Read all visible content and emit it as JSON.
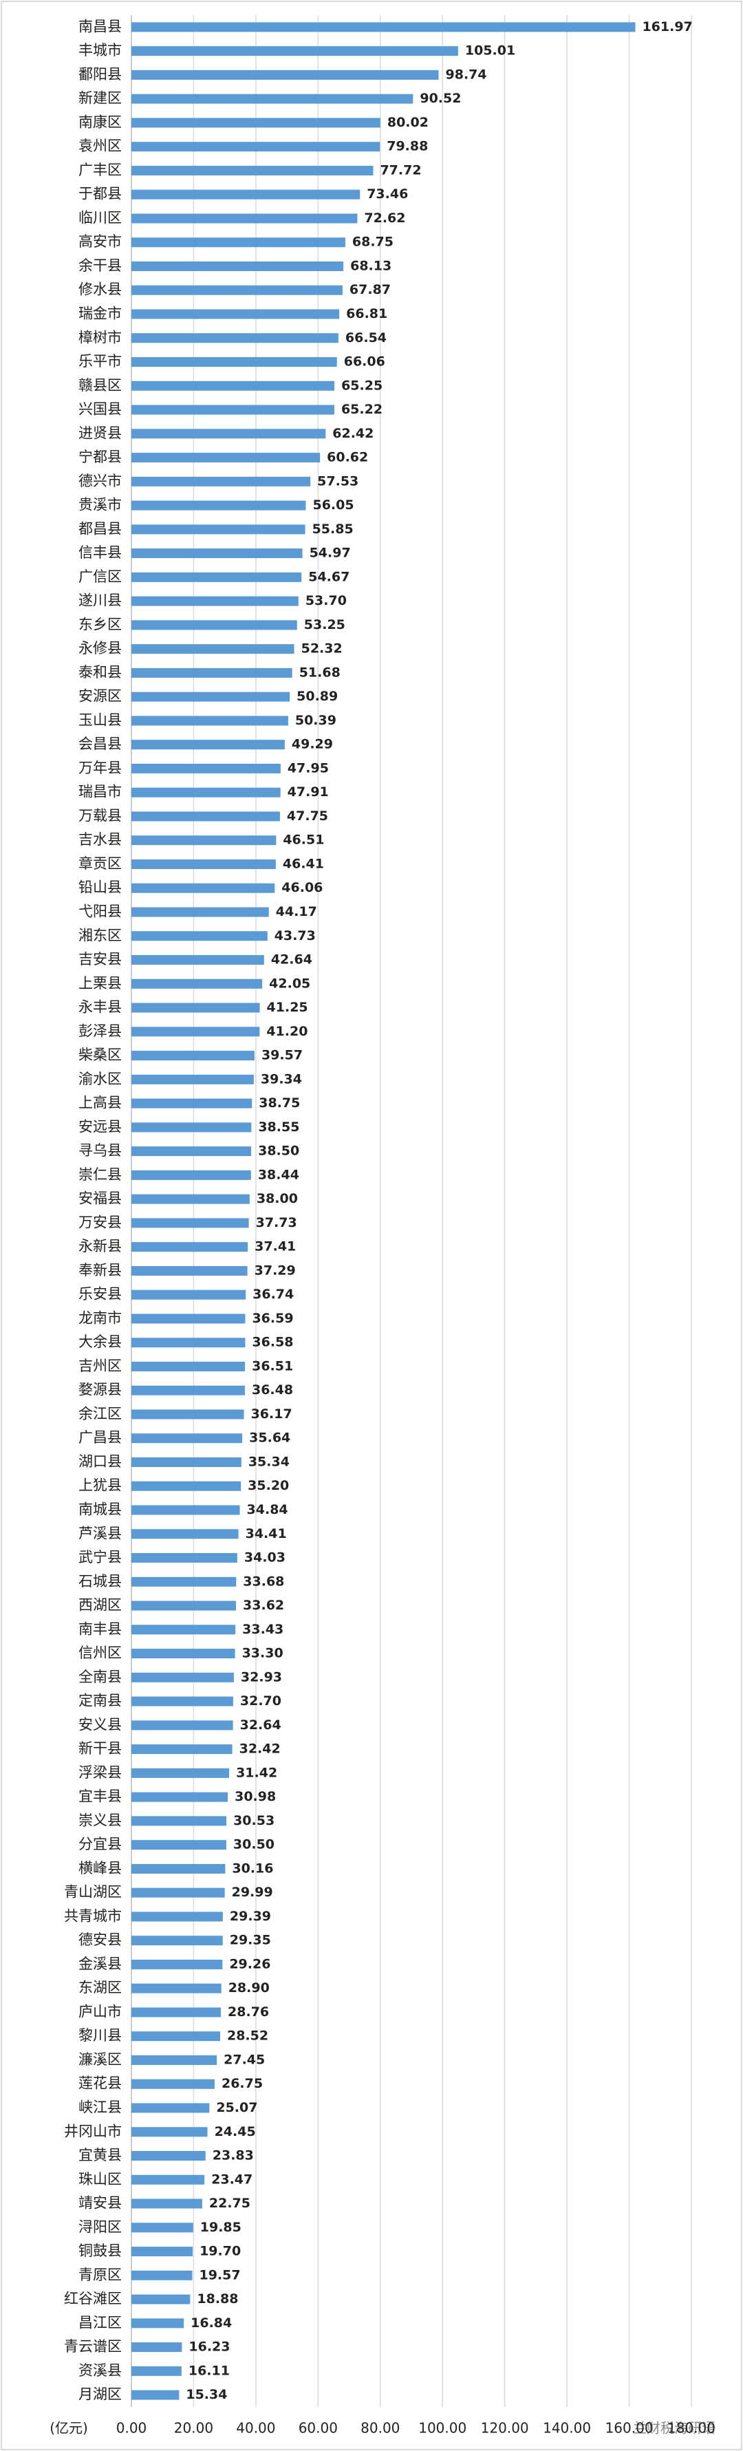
{
  "chart_data": {
    "type": "bar",
    "orientation": "horizontal",
    "color": "#5b9bd5",
    "grid": true,
    "x_label": "(亿元)",
    "watermark": "兰财税海研语",
    "categories": [
      "南昌县",
      "丰城市",
      "鄱阳县",
      "新建区",
      "南康区",
      "袁州区",
      "广丰区",
      "于都县",
      "临川区",
      "高安市",
      "余干县",
      "修水县",
      "瑞金市",
      "樟树市",
      "乐平市",
      "赣县区",
      "兴国县",
      "进贤县",
      "宁都县",
      "德兴市",
      "贵溪市",
      "都昌县",
      "信丰县",
      "广信区",
      "遂川县",
      "东乡区",
      "永修县",
      "泰和县",
      "安源区",
      "玉山县",
      "会昌县",
      "万年县",
      "瑞昌市",
      "万载县",
      "吉水县",
      "章贡区",
      "铅山县",
      "弋阳县",
      "湘东区",
      "吉安县",
      "上栗县",
      "永丰县",
      "彭泽县",
      "柴桑区",
      "渝水区",
      "上高县",
      "安远县",
      "寻乌县",
      "崇仁县",
      "安福县",
      "万安县",
      "永新县",
      "奉新县",
      "乐安县",
      "龙南市",
      "大余县",
      "吉州区",
      "婺源县",
      "余江区",
      "广昌县",
      "湖口县",
      "上犹县",
      "南城县",
      "芦溪县",
      "武宁县",
      "石城县",
      "西湖区",
      "南丰县",
      "信州区",
      "全南县",
      "定南县",
      "安义县",
      "新干县",
      "浮梁县",
      "宜丰县",
      "崇义县",
      "分宜县",
      "横峰县",
      "青山湖区",
      "共青城市",
      "德安县",
      "金溪县",
      "东湖区",
      "庐山市",
      "黎川县",
      "濂溪区",
      "莲花县",
      "峡江县",
      "井冈山市",
      "宜黄县",
      "珠山区",
      "靖安县",
      "浔阳区",
      "铜鼓县",
      "青原区",
      "红谷滩区",
      "昌江区",
      "青云谱区",
      "资溪县",
      "月湖区"
    ],
    "values": [
      161.97,
      105.01,
      98.74,
      90.52,
      80.02,
      79.88,
      77.72,
      73.46,
      72.62,
      68.75,
      68.13,
      67.87,
      66.81,
      66.54,
      66.06,
      65.25,
      65.22,
      62.42,
      60.62,
      57.53,
      56.05,
      55.85,
      54.97,
      54.67,
      53.7,
      53.25,
      52.32,
      51.68,
      50.89,
      50.39,
      49.29,
      47.95,
      47.91,
      47.75,
      46.51,
      46.41,
      46.06,
      44.17,
      43.73,
      42.64,
      42.05,
      41.25,
      41.2,
      39.57,
      39.34,
      38.75,
      38.55,
      38.5,
      38.44,
      38.0,
      37.73,
      37.41,
      37.29,
      36.74,
      36.59,
      36.58,
      36.51,
      36.48,
      36.17,
      35.64,
      35.34,
      35.2,
      34.84,
      34.41,
      34.03,
      33.68,
      33.62,
      33.43,
      33.3,
      32.93,
      32.7,
      32.64,
      32.42,
      31.42,
      30.98,
      30.53,
      30.5,
      30.16,
      29.99,
      29.39,
      29.35,
      29.26,
      28.9,
      28.76,
      28.52,
      27.45,
      26.75,
      25.07,
      24.45,
      23.83,
      23.47,
      22.75,
      19.85,
      19.7,
      19.57,
      18.88,
      16.84,
      16.23,
      16.11,
      15.34
    ],
    "value_labels": [
      "161.97",
      "105.01",
      "98.74",
      "90.52",
      "80.02",
      "79.88",
      "77.72",
      "73.46",
      "72.62",
      "68.75",
      "68.13",
      "67.87",
      "66.81",
      "66.54",
      "66.06",
      "65.25",
      "65.22",
      "62.42",
      "60.62",
      "57.53",
      "56.05",
      "55.85",
      "54.97",
      "54.67",
      "53.70",
      "53.25",
      "52.32",
      "51.68",
      "50.89",
      "50.39",
      "49.29",
      "47.95",
      "47.91",
      "47.75",
      "46.51",
      "46.41",
      "46.06",
      "44.17",
      "43.73",
      "42.64",
      "42.05",
      "41.25",
      "41.20",
      "39.57",
      "39.34",
      "38.75",
      "38.55",
      "38.50",
      "38.44",
      "38.00",
      "37.73",
      "37.41",
      "37.29",
      "36.74",
      "36.59",
      "36.58",
      "36.51",
      "36.48",
      "36.17",
      "35.64",
      "35.34",
      "35.20",
      "34.84",
      "34.41",
      "34.03",
      "33.68",
      "33.62",
      "33.43",
      "33.30",
      "32.93",
      "32.70",
      "32.64",
      "32.42",
      "31.42",
      "30.98",
      "30.53",
      "30.50",
      "30.16",
      "29.99",
      "29.39",
      "29.35",
      "29.26",
      "28.90",
      "28.76",
      "28.52",
      "27.45",
      "26.75",
      "25.07",
      "24.45",
      "23.83",
      "23.47",
      "22.75",
      "19.85",
      "19.70",
      "19.57",
      "18.88",
      "16.84",
      "16.23",
      "16.11",
      "15.34"
    ],
    "xlim": [
      0,
      180
    ],
    "xticks": [
      {
        "value": 0,
        "label": "0.00"
      },
      {
        "value": 20,
        "label": "20.00"
      },
      {
        "value": 40,
        "label": "40.00"
      },
      {
        "value": 60,
        "label": "60.00"
      },
      {
        "value": 80,
        "label": "80.00"
      },
      {
        "value": 100,
        "label": "100.00"
      },
      {
        "value": 120,
        "label": "120.00"
      },
      {
        "value": 140,
        "label": "140.00"
      },
      {
        "value": 160,
        "label": "160.00"
      },
      {
        "value": 180,
        "label": "180.00"
      }
    ]
  }
}
